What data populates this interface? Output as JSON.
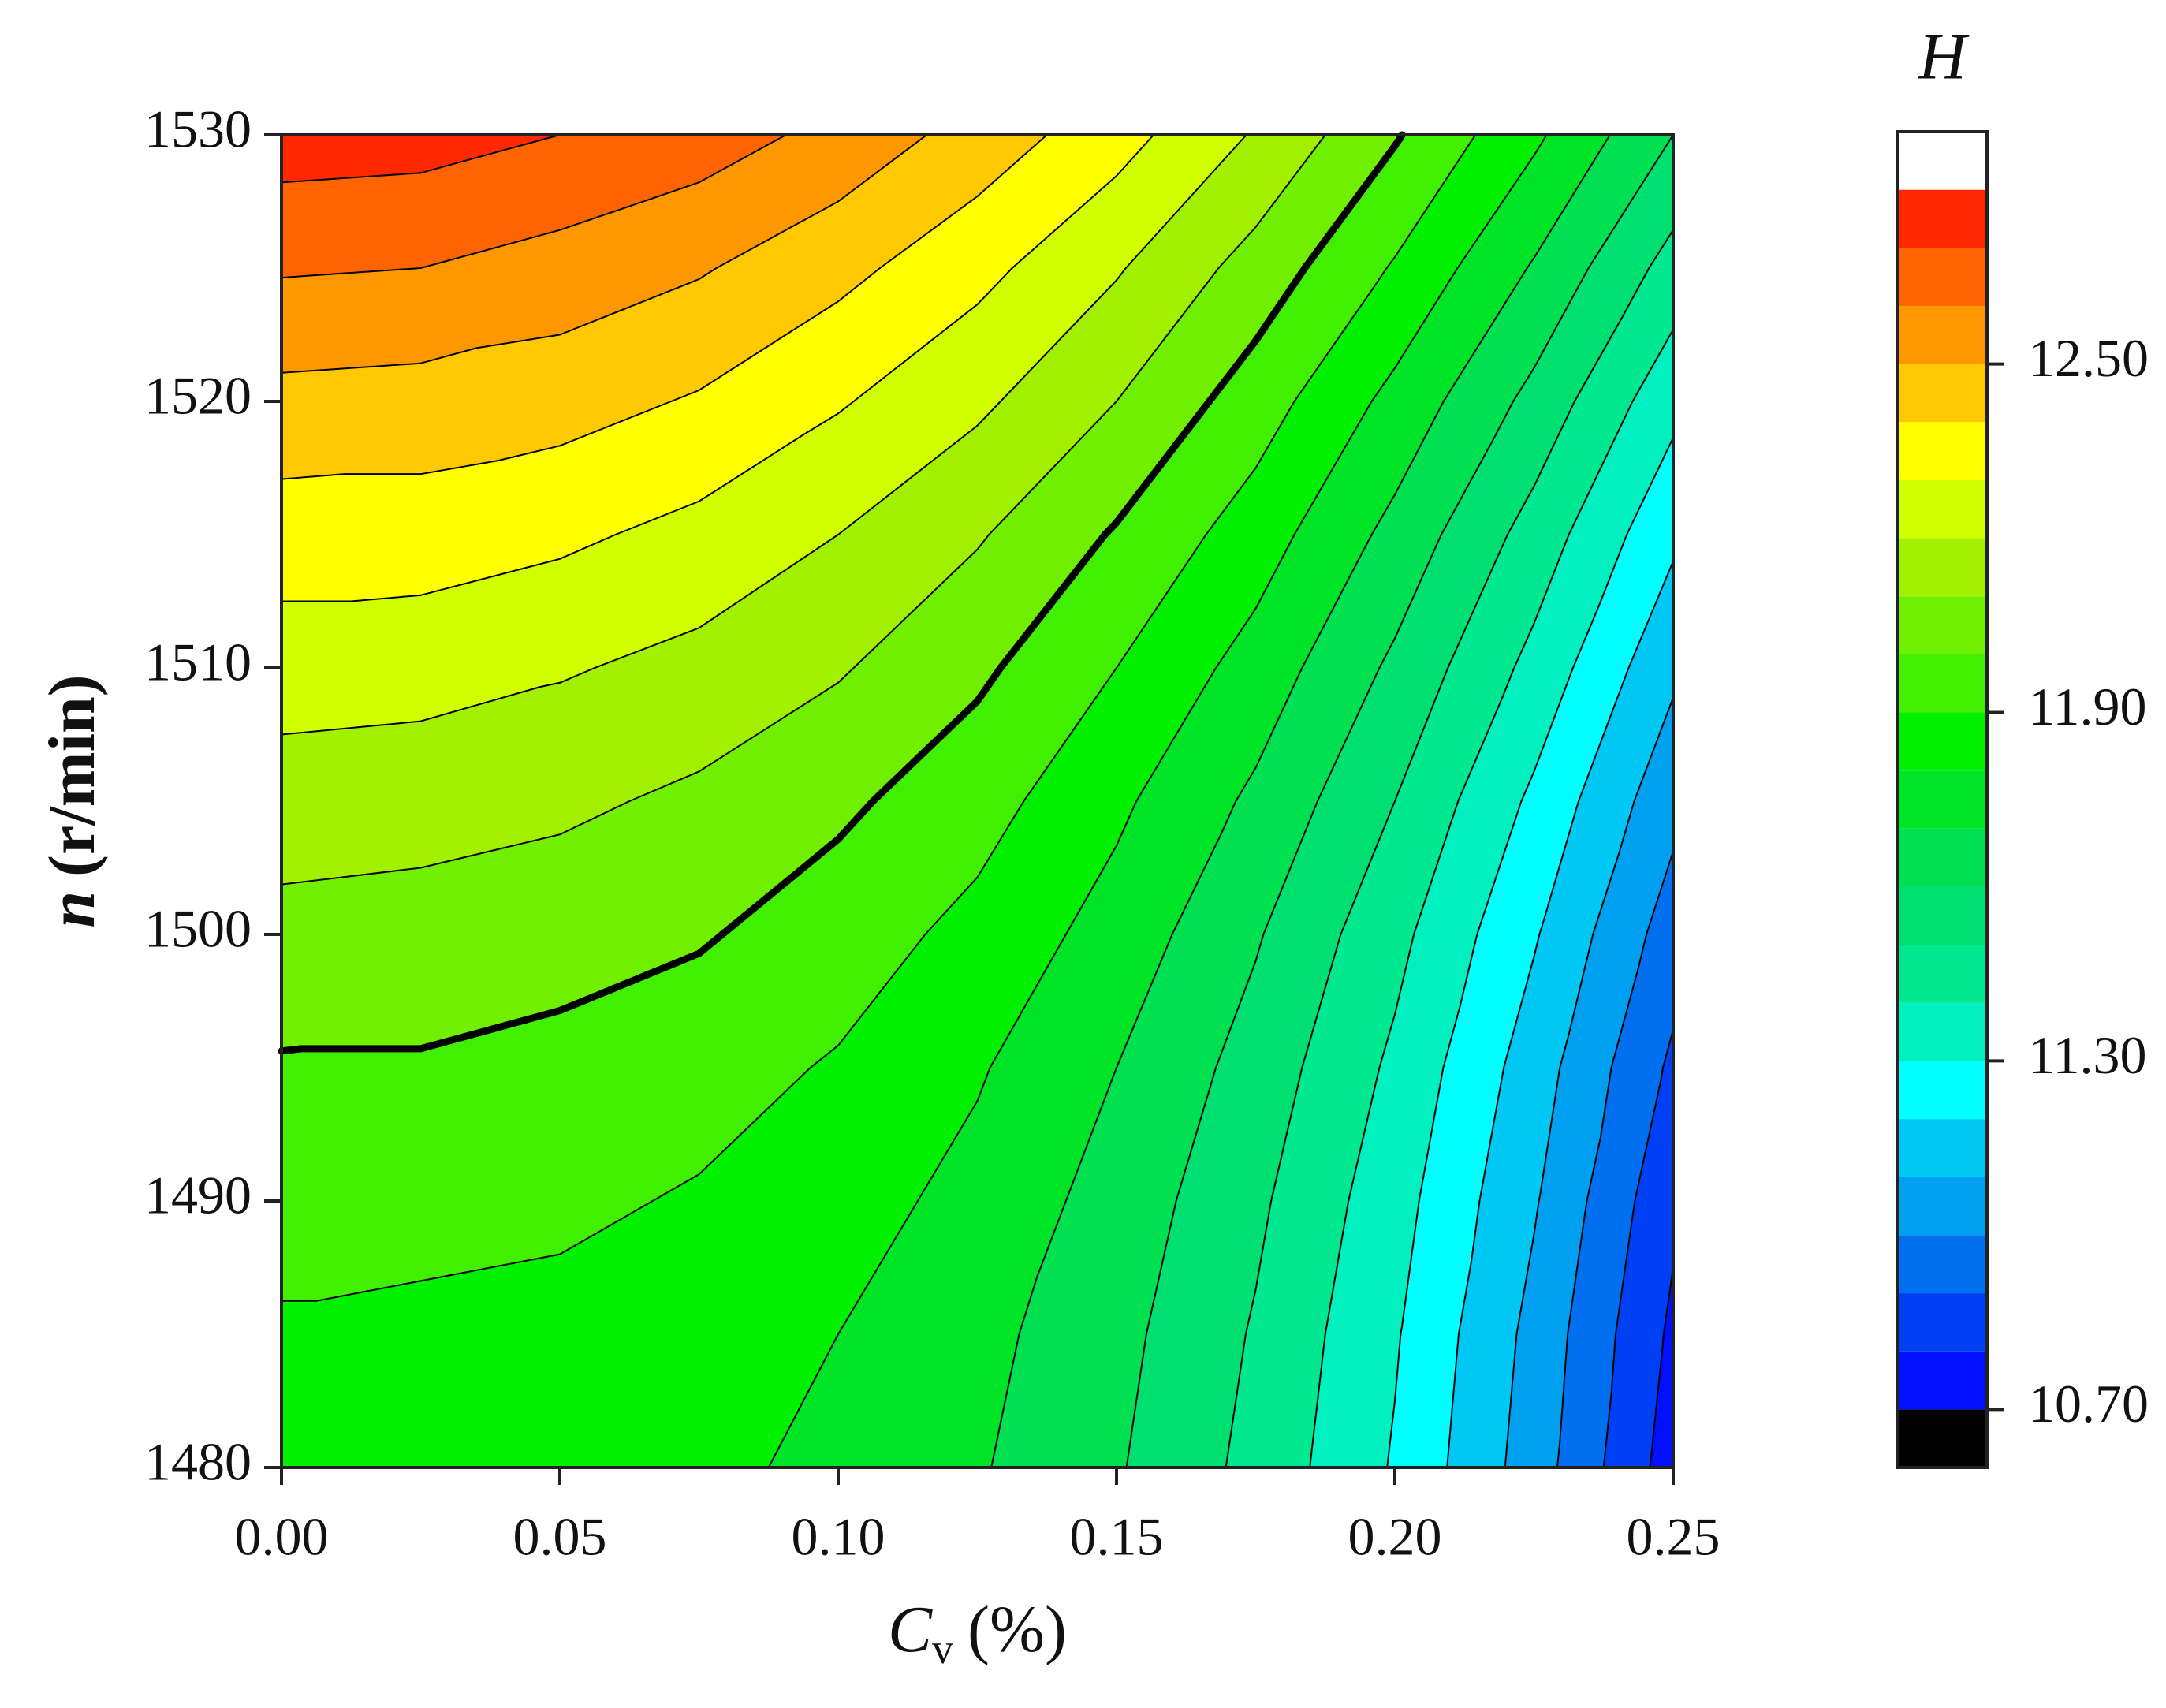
{
  "chart_data": {
    "type": "contour",
    "colorbar_title": "H",
    "xlabel": {
      "main": "C",
      "sub": "v",
      "unit": "(%)"
    },
    "ylabel": {
      "main": "n",
      "unit": "(r/min)"
    },
    "x": [
      0,
      0.025,
      0.05,
      0.075,
      0.1,
      0.125,
      0.15,
      0.175,
      0.2,
      0.225,
      0.25
    ],
    "y": [
      1480,
      1485,
      1490,
      1495,
      1500,
      1505,
      1510,
      1515,
      1520,
      1525,
      1530
    ],
    "z": [
      [
        11.85,
        11.85,
        11.84,
        11.82,
        11.78,
        11.71,
        11.61,
        11.47,
        11.29,
        11.05,
        10.75
      ],
      [
        11.89,
        11.88,
        11.87,
        11.85,
        11.8,
        11.73,
        11.63,
        11.49,
        11.31,
        11.07,
        10.78
      ],
      [
        11.93,
        11.93,
        11.92,
        11.89,
        11.84,
        11.77,
        11.66,
        11.52,
        11.34,
        11.11,
        10.82
      ],
      [
        11.99,
        11.99,
        11.97,
        11.94,
        11.89,
        11.81,
        11.7,
        11.56,
        11.38,
        11.15,
        10.88
      ],
      [
        12.07,
        12.06,
        12.04,
        12.01,
        11.95,
        11.87,
        11.76,
        11.61,
        11.43,
        11.21,
        10.95
      ],
      [
        12.15,
        12.14,
        12.12,
        12.08,
        12.02,
        11.94,
        11.82,
        11.68,
        11.5,
        11.28,
        11.03
      ],
      [
        12.25,
        12.24,
        12.21,
        12.17,
        12.11,
        12.02,
        11.9,
        11.76,
        11.58,
        11.37,
        11.12
      ],
      [
        12.35,
        12.35,
        12.32,
        12.27,
        12.2,
        12.11,
        11.99,
        11.85,
        11.67,
        11.46,
        11.22
      ],
      [
        12.47,
        12.46,
        12.44,
        12.39,
        12.31,
        12.22,
        12.1,
        11.95,
        11.77,
        11.57,
        11.33
      ],
      [
        12.61,
        12.6,
        12.56,
        12.51,
        12.43,
        12.33,
        12.21,
        12.06,
        11.89,
        11.69,
        11.46
      ],
      [
        12.75,
        12.74,
        12.7,
        12.65,
        12.57,
        12.46,
        12.34,
        12.19,
        12.01,
        11.82,
        11.6
      ]
    ],
    "xlim": [
      0,
      0.25
    ],
    "ylim": [
      1480,
      1530
    ],
    "xticks": [
      {
        "value": 0,
        "label": "0.00"
      },
      {
        "value": 0.05,
        "label": "0.05"
      },
      {
        "value": 0.1,
        "label": "0.10"
      },
      {
        "value": 0.15,
        "label": "0.15"
      },
      {
        "value": 0.2,
        "label": "0.20"
      },
      {
        "value": 0.25,
        "label": "0.25"
      }
    ],
    "yticks": [
      1480,
      1490,
      1500,
      1510,
      1520,
      1530
    ],
    "levels": [
      10.7,
      10.8,
      10.9,
      11.0,
      11.1,
      11.2,
      11.3,
      11.4,
      11.5,
      11.6,
      11.7,
      11.8,
      11.9,
      12.0,
      12.1,
      12.2,
      12.3,
      12.4,
      12.5,
      12.6,
      12.7,
      12.8
    ],
    "colors": [
      "#000000",
      "#0010ff",
      "#0040f4",
      "#0070f0",
      "#00a0f0",
      "#00c8f4",
      "#00ffff",
      "#00f0c0",
      "#00e890",
      "#00e070",
      "#00e050",
      "#00e428",
      "#00f000",
      "#40f000",
      "#70f000",
      "#a0f000",
      "#d0ff00",
      "#ffff00",
      "#ffc800",
      "#ff9800",
      "#ff6400",
      "#ff2800",
      "#ffffff"
    ],
    "clim": [
      10.6,
      12.9
    ],
    "cticks": [
      {
        "value": 10.7,
        "label": "10.70"
      },
      {
        "value": 11.3,
        "label": "11.30"
      },
      {
        "value": 11.9,
        "label": "11.90"
      },
      {
        "value": 12.5,
        "label": "12.50"
      }
    ],
    "contour_lines": true,
    "bold_level": 12.0
  }
}
